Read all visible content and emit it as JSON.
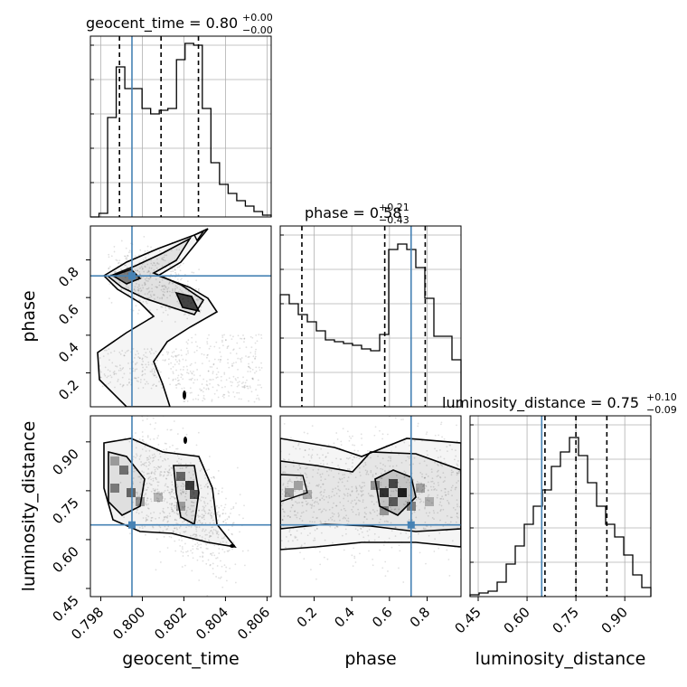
{
  "chart_data": {
    "type": "corner",
    "parameters": [
      {
        "key": "geocent_time",
        "label": "geocent_time",
        "range": [
          0.7975,
          0.8062
        ],
        "ticks": [
          0.798,
          0.8,
          0.802,
          0.804,
          0.806
        ],
        "tick_labels": [
          "0.798",
          "0.800",
          "0.802",
          "0.804",
          "0.806"
        ]
      },
      {
        "key": "phase",
        "label": "phase",
        "range": [
          0.02,
          0.98
        ],
        "ticks": [
          0.2,
          0.4,
          0.6,
          0.8
        ],
        "tick_labels": [
          "0.2",
          "0.4",
          "0.6",
          "0.8"
        ]
      },
      {
        "key": "luminosity_distance",
        "label": "luminosity_distance",
        "range": [
          0.425,
          0.98
        ],
        "ticks": [
          0.45,
          0.6,
          0.75,
          0.9
        ],
        "tick_labels": [
          "0.45",
          "0.60",
          "0.75",
          "0.90"
        ]
      }
    ],
    "titles": [
      {
        "name": "geocent_time",
        "median": "0.80",
        "plus": "+0.00",
        "minus": "−0.00"
      },
      {
        "name": "phase",
        "median": "0.58",
        "plus": "+0.21",
        "minus": "−0.43"
      },
      {
        "name": "luminosity_distance",
        "median": "0.75",
        "plus": "+0.10",
        "minus": "−0.09"
      }
    ],
    "truths": {
      "geocent_time": 0.7995,
      "phase": 0.715,
      "luminosity_distance": 0.645
    },
    "quantiles": {
      "geocent_time": [
        0.7989,
        0.8009,
        0.8027
      ],
      "phase": [
        0.135,
        0.575,
        0.79
      ],
      "luminosity_distance": [
        0.655,
        0.75,
        0.845
      ]
    },
    "histograms": {
      "geocent_time": [
        0,
        0.02,
        0.55,
        0.83,
        0.71,
        0.71,
        0.6,
        0.57,
        0.59,
        0.6,
        0.87,
        0.96,
        0.95,
        0.6,
        0.3,
        0.18,
        0.13,
        0.09,
        0.06,
        0.03,
        0.01
      ],
      "phase": [
        0.62,
        0.57,
        0.51,
        0.47,
        0.42,
        0.37,
        0.36,
        0.35,
        0.34,
        0.32,
        0.31,
        0.4,
        0.87,
        0.9,
        0.87,
        0.77,
        0.6,
        0.39,
        0.39,
        0.26
      ],
      "luminosity_distance": [
        0.01,
        0.02,
        0.03,
        0.08,
        0.18,
        0.28,
        0.4,
        0.5,
        0.59,
        0.72,
        0.8,
        0.88,
        0.78,
        0.63,
        0.5,
        0.4,
        0.33,
        0.23,
        0.12,
        0.05
      ]
    },
    "grid": true,
    "contour_color": "#000000",
    "truth_color": "#4682b4"
  }
}
